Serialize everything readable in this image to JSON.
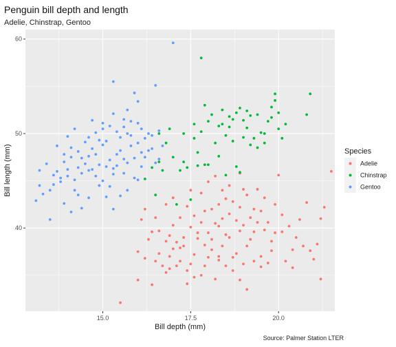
{
  "chart_data": {
    "type": "scatter",
    "title": "Penguin bill depth and length",
    "subtitle": "Adelie, Chinstrap, Gentoo",
    "caption": "Source: Palmer Station LTER",
    "xlabel": "Bill depth (mm)",
    "ylabel": "Bill length (mm)",
    "xlim": [
      12.8,
      21.6
    ],
    "ylim": [
      31.2,
      61.0
    ],
    "xticks": [
      15.0,
      17.5,
      20.0
    ],
    "xtick_labels": [
      "15.0",
      "17.5",
      "20.0"
    ],
    "yticks": [
      40,
      50,
      60
    ],
    "ytick_labels": [
      "40",
      "50",
      "60"
    ],
    "grid": true,
    "legend": {
      "title": "Species",
      "placement": "right"
    },
    "series": [
      {
        "name": "Adelie",
        "color": "#F8766D",
        "points": [
          [
            15.5,
            32.1
          ],
          [
            16.0,
            34.5
          ],
          [
            16.4,
            34.0
          ],
          [
            16.8,
            35.3
          ],
          [
            16.7,
            36.0
          ],
          [
            16.5,
            36.5
          ],
          [
            16.2,
            36.8
          ],
          [
            16.0,
            37.5
          ],
          [
            16.9,
            37.0
          ],
          [
            17.0,
            37.8
          ],
          [
            17.2,
            36.5
          ],
          [
            17.4,
            35.5
          ],
          [
            17.6,
            34.8
          ],
          [
            17.8,
            35.0
          ],
          [
            17.9,
            36.0
          ],
          [
            17.1,
            38.5
          ],
          [
            17.3,
            39.0
          ],
          [
            17.0,
            40.3
          ],
          [
            17.5,
            40.1
          ],
          [
            17.7,
            39.5
          ],
          [
            17.9,
            38.2
          ],
          [
            18.1,
            37.7
          ],
          [
            18.3,
            37.0
          ],
          [
            18.5,
            36.0
          ],
          [
            18.7,
            35.5
          ],
          [
            18.9,
            34.5
          ],
          [
            19.1,
            33.5
          ],
          [
            19.3,
            36.5
          ],
          [
            19.5,
            37.0
          ],
          [
            19.7,
            36.3
          ],
          [
            18.0,
            39.5
          ],
          [
            18.2,
            40.5
          ],
          [
            18.4,
            41.0
          ],
          [
            18.6,
            41.5
          ],
          [
            18.8,
            40.8
          ],
          [
            19.0,
            40.3
          ],
          [
            19.2,
            41.1
          ],
          [
            19.4,
            40.6
          ],
          [
            19.6,
            39.8
          ],
          [
            19.8,
            38.6
          ],
          [
            18.1,
            42.0
          ],
          [
            18.3,
            42.5
          ],
          [
            18.5,
            43.1
          ],
          [
            18.7,
            42.8
          ],
          [
            18.9,
            42.2
          ],
          [
            19.1,
            43.5
          ],
          [
            19.3,
            42.0
          ],
          [
            19.5,
            41.8
          ],
          [
            19.0,
            44.1
          ],
          [
            18.6,
            44.5
          ],
          [
            17.6,
            41.3
          ],
          [
            17.4,
            42.3
          ],
          [
            17.2,
            41.1
          ],
          [
            16.9,
            39.2
          ],
          [
            16.6,
            39.7
          ],
          [
            16.3,
            38.8
          ],
          [
            16.1,
            40.9
          ],
          [
            16.2,
            42.0
          ],
          [
            16.8,
            42.5
          ],
          [
            17.0,
            43.2
          ],
          [
            17.5,
            44.0
          ],
          [
            17.8,
            43.7
          ],
          [
            18.0,
            44.9
          ],
          [
            18.2,
            45.5
          ],
          [
            18.4,
            44.0
          ],
          [
            18.9,
            45.8
          ],
          [
            19.4,
            44.1
          ],
          [
            19.6,
            43.2
          ],
          [
            19.9,
            42.5
          ],
          [
            20.1,
            41.4
          ],
          [
            20.3,
            40.2
          ],
          [
            20.5,
            39.0
          ],
          [
            20.7,
            38.1
          ],
          [
            20.9,
            37.6
          ],
          [
            21.1,
            38.3
          ],
          [
            21.2,
            41.0
          ],
          [
            21.3,
            42.2
          ],
          [
            21.5,
            46.0
          ],
          [
            20.0,
            45.6
          ],
          [
            19.8,
            37.6
          ],
          [
            20.2,
            36.5
          ],
          [
            20.4,
            35.8
          ],
          [
            20.6,
            40.9
          ],
          [
            20.8,
            42.7
          ],
          [
            21.0,
            36.7
          ],
          [
            21.2,
            34.6
          ],
          [
            19.2,
            38.8
          ],
          [
            18.8,
            37.3
          ],
          [
            18.4,
            38.1
          ],
          [
            18.0,
            36.9
          ],
          [
            17.6,
            37.2
          ],
          [
            17.2,
            37.9
          ],
          [
            16.8,
            38.6
          ],
          [
            16.4,
            39.6
          ],
          [
            17.8,
            40.6
          ],
          [
            18.6,
            39.0
          ],
          [
            19.0,
            36.2
          ],
          [
            18.2,
            34.6
          ],
          [
            17.4,
            34.1
          ],
          [
            16.6,
            37.3
          ],
          [
            17.3,
            38.1
          ],
          [
            17.7,
            38.9
          ],
          [
            18.1,
            38.8
          ],
          [
            18.5,
            39.3
          ],
          [
            18.9,
            39.7
          ],
          [
            19.3,
            39.6
          ],
          [
            19.7,
            40.6
          ],
          [
            20.1,
            39.6
          ],
          [
            16.9,
            35.7
          ],
          [
            17.5,
            36.2
          ],
          [
            18.3,
            36.6
          ],
          [
            18.7,
            36.9
          ],
          [
            19.5,
            35.9
          ],
          [
            17.9,
            41.8
          ],
          [
            18.3,
            40.2
          ],
          [
            19.1,
            38.1
          ],
          [
            19.9,
            39.5
          ],
          [
            16.5,
            41.1
          ],
          [
            20.4,
            37.7
          ],
          [
            17.1,
            36.0
          ]
        ]
      },
      {
        "name": "Chinstrap",
        "color": "#00BA38",
        "points": [
          [
            17.8,
            58.0
          ],
          [
            17.1,
            42.5
          ],
          [
            16.5,
            43.5
          ],
          [
            16.2,
            45.2
          ],
          [
            16.4,
            46.4
          ],
          [
            16.7,
            46.1
          ],
          [
            16.6,
            47.0
          ],
          [
            16.8,
            49.0
          ],
          [
            17.0,
            47.5
          ],
          [
            17.2,
            46.1
          ],
          [
            17.4,
            46.4
          ],
          [
            17.6,
            49.5
          ],
          [
            17.7,
            46.6
          ],
          [
            17.9,
            46.7
          ],
          [
            17.8,
            50.2
          ],
          [
            18.0,
            51.3
          ],
          [
            18.1,
            52.0
          ],
          [
            18.2,
            49.0
          ],
          [
            18.3,
            50.8
          ],
          [
            18.4,
            51.0
          ],
          [
            18.5,
            49.8
          ],
          [
            18.6,
            50.7
          ],
          [
            18.7,
            51.5
          ],
          [
            18.8,
            52.2
          ],
          [
            18.9,
            52.7
          ],
          [
            19.0,
            51.4
          ],
          [
            19.1,
            50.6
          ],
          [
            19.2,
            51.9
          ],
          [
            19.3,
            49.5
          ],
          [
            19.4,
            48.5
          ],
          [
            19.5,
            50.1
          ],
          [
            19.6,
            50.0
          ],
          [
            19.7,
            51.3
          ],
          [
            19.8,
            52.8
          ],
          [
            19.9,
            53.5
          ],
          [
            20.0,
            50.5
          ],
          [
            20.1,
            49.5
          ],
          [
            20.2,
            51.0
          ],
          [
            19.9,
            54.2
          ],
          [
            20.8,
            52.0
          ],
          [
            20.9,
            54.2
          ],
          [
            18.0,
            46.7
          ],
          [
            18.5,
            45.6
          ],
          [
            18.9,
            45.9
          ],
          [
            19.0,
            49.6
          ],
          [
            19.2,
            48.8
          ],
          [
            18.3,
            47.6
          ],
          [
            17.3,
            47.0
          ],
          [
            17.5,
            43.0
          ],
          [
            18.8,
            46.5
          ],
          [
            19.6,
            49.0
          ],
          [
            18.7,
            49.2
          ],
          [
            18.4,
            52.5
          ],
          [
            17.9,
            53.0
          ],
          [
            19.4,
            52.0
          ],
          [
            19.8,
            51.7
          ],
          [
            20.0,
            52.2
          ],
          [
            18.6,
            51.8
          ],
          [
            19.1,
            52.4
          ],
          [
            17.6,
            51.0
          ],
          [
            17.3,
            50.0
          ],
          [
            16.9,
            50.5
          ],
          [
            16.6,
            50.0
          ],
          [
            17.7,
            48.0
          ]
        ]
      },
      {
        "name": "Gentoo",
        "color": "#619CFF",
        "points": [
          [
            17.0,
            59.6
          ],
          [
            13.1,
            42.9
          ],
          [
            13.3,
            43.6
          ],
          [
            13.5,
            44.0
          ],
          [
            13.6,
            44.6
          ],
          [
            13.8,
            44.9
          ],
          [
            13.7,
            46.0
          ],
          [
            13.4,
            46.8
          ],
          [
            13.2,
            46.1
          ],
          [
            13.9,
            47.0
          ],
          [
            14.1,
            47.5
          ],
          [
            14.0,
            45.5
          ],
          [
            14.2,
            45.1
          ],
          [
            14.3,
            46.4
          ],
          [
            14.4,
            45.8
          ],
          [
            14.5,
            46.8
          ],
          [
            14.6,
            47.6
          ],
          [
            14.7,
            46.2
          ],
          [
            14.8,
            45.5
          ],
          [
            14.9,
            44.5
          ],
          [
            15.0,
            45.0
          ],
          [
            15.1,
            46.5
          ],
          [
            15.2,
            47.2
          ],
          [
            15.3,
            45.7
          ],
          [
            15.4,
            46.6
          ],
          [
            15.5,
            48.2
          ],
          [
            15.6,
            47.3
          ],
          [
            15.7,
            46.9
          ],
          [
            15.8,
            48.7
          ],
          [
            15.9,
            47.4
          ],
          [
            16.0,
            49.0
          ],
          [
            16.1,
            48.0
          ],
          [
            16.2,
            49.5
          ],
          [
            16.3,
            50.0
          ],
          [
            16.4,
            48.4
          ],
          [
            16.5,
            46.9
          ],
          [
            16.6,
            47.3
          ],
          [
            16.7,
            48.7
          ],
          [
            14.1,
            48.5
          ],
          [
            14.3,
            48.1
          ],
          [
            14.5,
            49.1
          ],
          [
            14.6,
            49.6
          ],
          [
            14.8,
            50.1
          ],
          [
            15.0,
            50.5
          ],
          [
            15.2,
            50.8
          ],
          [
            15.4,
            50.2
          ],
          [
            15.6,
            50.7
          ],
          [
            15.8,
            51.3
          ],
          [
            16.0,
            51.1
          ],
          [
            15.3,
            52.1
          ],
          [
            15.0,
            51.1
          ],
          [
            14.7,
            51.4
          ],
          [
            14.2,
            50.5
          ],
          [
            14.0,
            49.7
          ],
          [
            13.7,
            48.7
          ],
          [
            13.9,
            42.6
          ],
          [
            14.1,
            41.7
          ],
          [
            13.5,
            40.9
          ],
          [
            14.4,
            42.1
          ],
          [
            15.1,
            43.3
          ],
          [
            15.3,
            42.0
          ],
          [
            15.5,
            43.4
          ],
          [
            15.7,
            44.0
          ],
          [
            15.9,
            45.3
          ],
          [
            15.0,
            48.8
          ],
          [
            15.8,
            49.8
          ],
          [
            16.2,
            47.5
          ],
          [
            16.0,
            45.1
          ],
          [
            15.6,
            45.8
          ],
          [
            15.2,
            44.4
          ],
          [
            14.6,
            43.2
          ],
          [
            14.2,
            44.0
          ],
          [
            13.8,
            45.3
          ],
          [
            14.9,
            46.7
          ],
          [
            15.4,
            47.8
          ],
          [
            14.4,
            47.4
          ],
          [
            15.7,
            50.0
          ],
          [
            16.3,
            48.2
          ],
          [
            16.5,
            55.1
          ],
          [
            16.0,
            53.4
          ],
          [
            15.9,
            54.3
          ],
          [
            15.7,
            52.5
          ],
          [
            15.3,
            55.5
          ],
          [
            15.6,
            51.5
          ],
          [
            14.8,
            47.8
          ],
          [
            14.0,
            46.2
          ],
          [
            13.6,
            45.6
          ],
          [
            14.7,
            48.4
          ],
          [
            15.1,
            49.2
          ],
          [
            15.5,
            49.6
          ],
          [
            16.1,
            50.5
          ],
          [
            16.4,
            49.8
          ],
          [
            16.6,
            50.3
          ],
          [
            14.9,
            49.3
          ],
          [
            14.3,
            43.5
          ],
          [
            13.2,
            44.5
          ],
          [
            13.9,
            47.8
          ],
          [
            14.6,
            46.1
          ],
          [
            15.3,
            46.3
          ],
          [
            16.1,
            46.5
          ]
        ]
      }
    ]
  }
}
